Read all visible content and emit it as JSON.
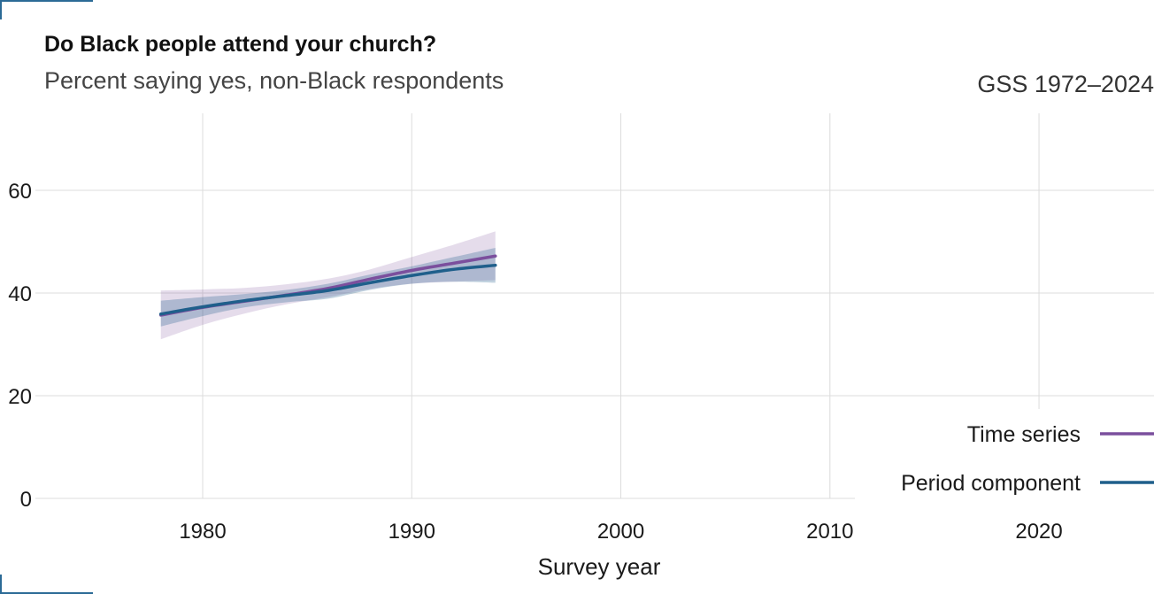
{
  "chart_data": {
    "type": "line",
    "title": "Do Black people attend your church?",
    "subtitle": "Percent saying yes, non-Black respondents",
    "source_label": "GSS 1972–2024",
    "xlabel": "Survey year",
    "ylabel": "",
    "xlim": [
      1972,
      2025.5
    ],
    "ylim": [
      0,
      75
    ],
    "x_ticks": [
      1980,
      1990,
      2000,
      2010,
      2020
    ],
    "y_ticks": [
      0,
      20,
      40,
      60
    ],
    "grid": true,
    "legend_position": "bottom-right",
    "series": [
      {
        "name": "Time series",
        "color": "#7b4f9d",
        "x": [
          1978,
          1980,
          1982,
          1984,
          1986,
          1988,
          1990,
          1992,
          1994
        ],
        "y": [
          35.7,
          37.2,
          38.4,
          39.6,
          40.9,
          42.7,
          44.4,
          45.8,
          47.2
        ],
        "lower": [
          31.0,
          33.8,
          36.0,
          37.8,
          39.2,
          40.8,
          41.8,
          42.2,
          42.5
        ],
        "upper": [
          40.5,
          40.7,
          41.0,
          41.7,
          42.8,
          44.6,
          47.0,
          49.4,
          52.0
        ]
      },
      {
        "name": "Period component",
        "color": "#1f5f8b",
        "x": [
          1978,
          1980,
          1982,
          1984,
          1986,
          1988,
          1990,
          1992,
          1994
        ],
        "y": [
          35.9,
          37.3,
          38.5,
          39.5,
          40.5,
          42.0,
          43.4,
          44.6,
          45.4
        ],
        "lower": [
          33.5,
          35.5,
          37.2,
          38.2,
          38.9,
          40.6,
          41.8,
          42.2,
          42.0
        ],
        "upper": [
          38.5,
          39.2,
          39.8,
          40.6,
          41.8,
          43.6,
          45.2,
          47.0,
          48.8
        ]
      }
    ]
  }
}
